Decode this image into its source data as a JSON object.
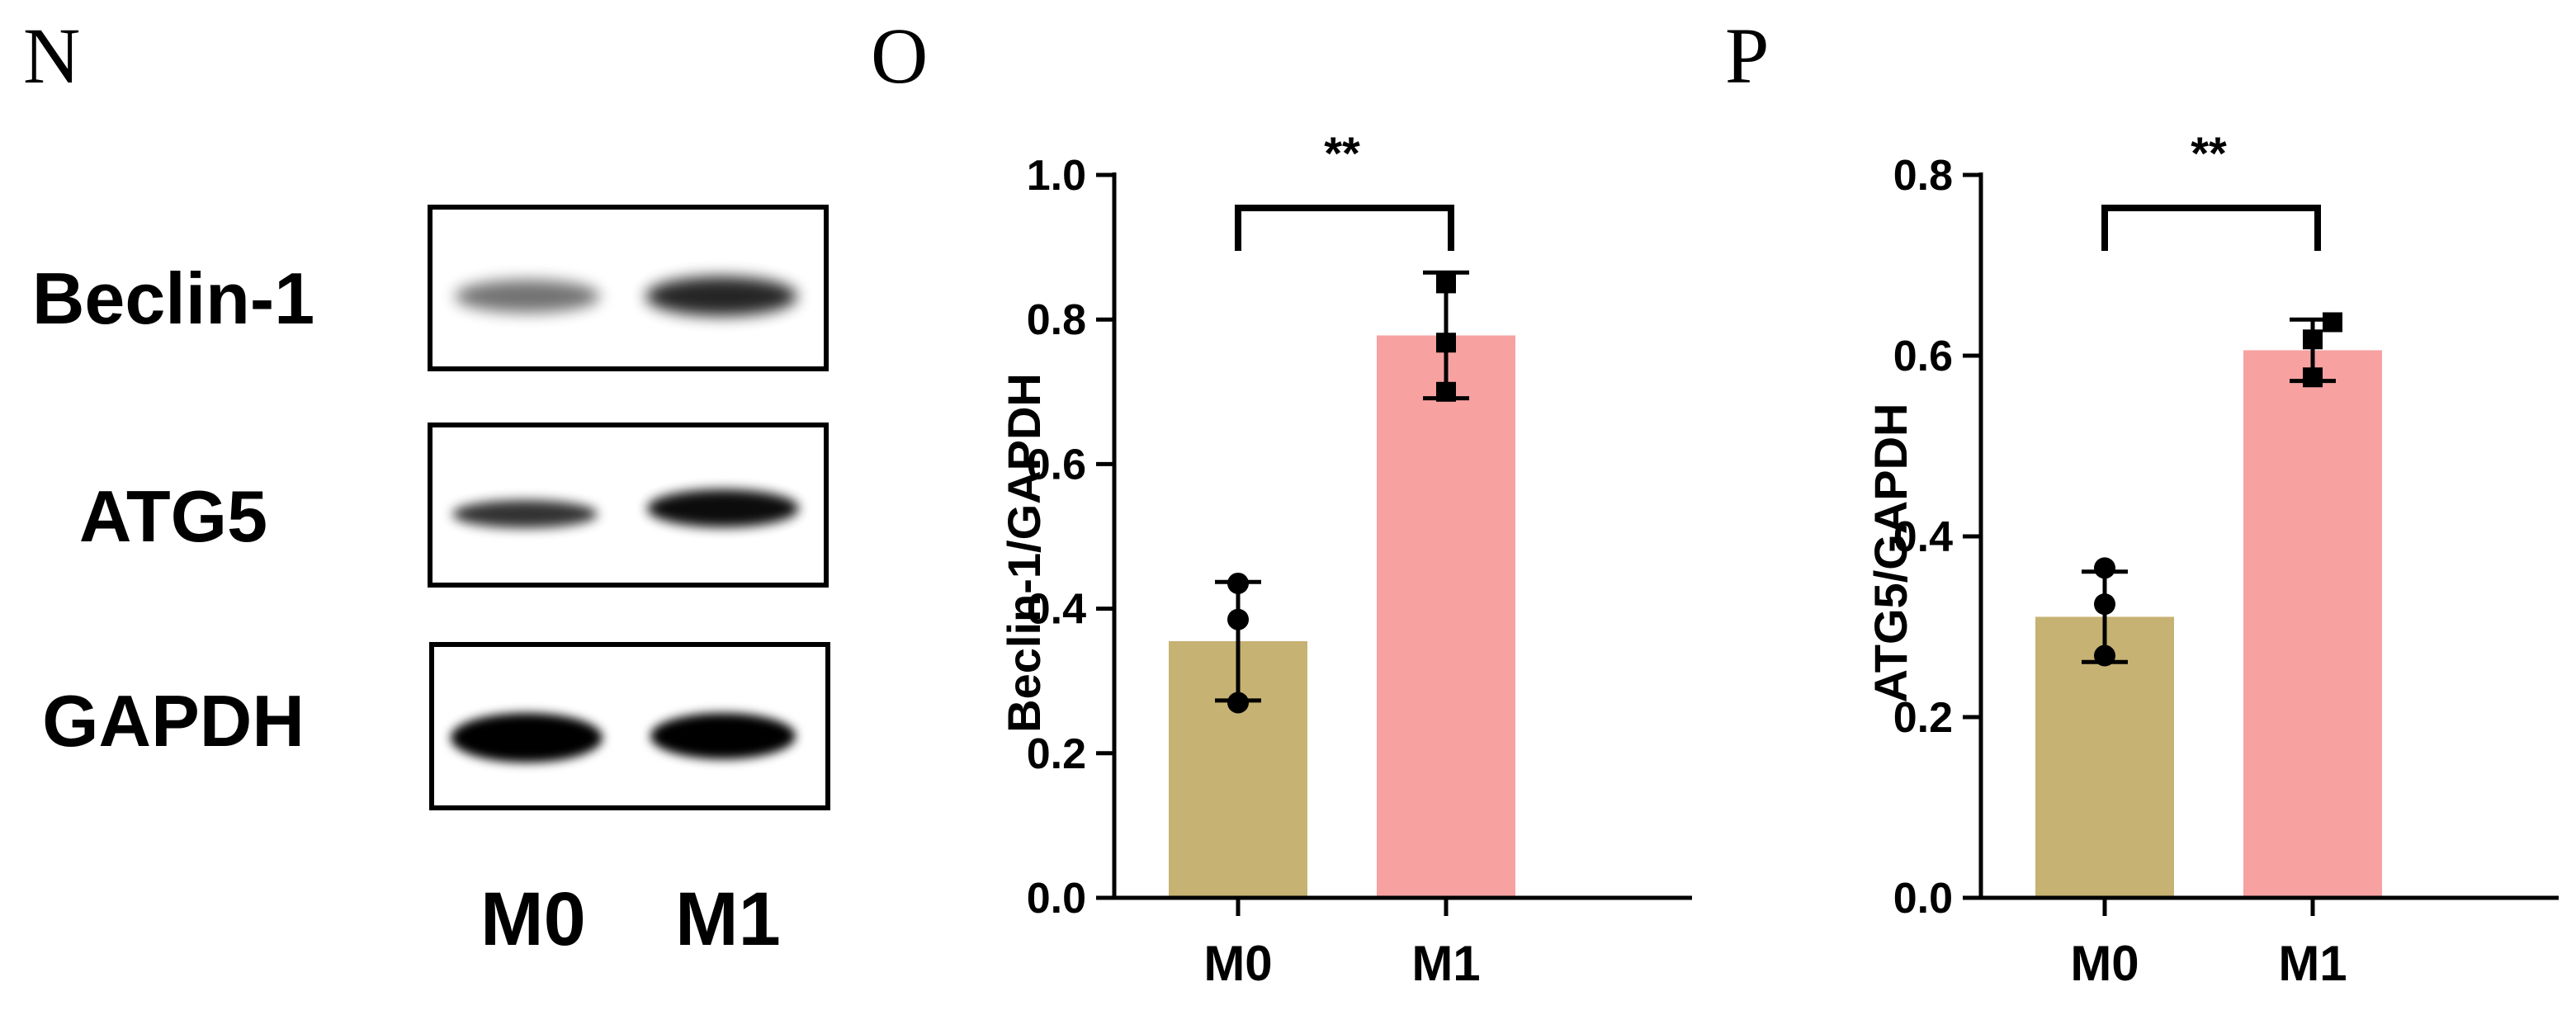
{
  "panels": {
    "N": "N",
    "O": "O",
    "P": "P"
  },
  "western_blot": {
    "rows": [
      {
        "label": "Beclin-1",
        "band_intensity": [
          0.55,
          0.85
        ]
      },
      {
        "label": "ATG5",
        "band_intensity": [
          0.8,
          0.95
        ]
      },
      {
        "label": "GAPDH",
        "band_intensity": [
          1.0,
          1.0
        ]
      }
    ],
    "lanes": [
      "M0",
      "M1"
    ]
  },
  "colors": {
    "M0_bar": "#c6b273",
    "M1_bar": "#f7a1a1",
    "axis": "#000000"
  },
  "chart_data": [
    {
      "type": "bar",
      "title": "",
      "xlabel": "",
      "ylabel": "Beclin-1/GAPDH",
      "categories": [
        "M0",
        "M1"
      ],
      "values": [
        0.355,
        0.778
      ],
      "error": [
        0.082,
        0.087
      ],
      "points": [
        [
          0.435,
          0.385,
          0.27
        ],
        [
          0.85,
          0.768,
          0.7
        ]
      ],
      "ylim": [
        0.0,
        1.0
      ],
      "yticks": [
        "0.0",
        "0.2",
        "0.4",
        "0.6",
        "0.8",
        "1.0"
      ],
      "significance": "**"
    },
    {
      "type": "bar",
      "title": "",
      "xlabel": "",
      "ylabel": "ATG5/GAPDH",
      "categories": [
        "M0",
        "M1"
      ],
      "values": [
        0.311,
        0.606
      ],
      "error": [
        0.05,
        0.034
      ],
      "points": [
        [
          0.365,
          0.325,
          0.268
        ],
        [
          0.637,
          0.618,
          0.576
        ]
      ],
      "ylim": [
        0.0,
        0.8
      ],
      "yticks": [
        "0.0",
        "0.2",
        "0.4",
        "0.6",
        "0.8"
      ],
      "significance": "**"
    }
  ]
}
